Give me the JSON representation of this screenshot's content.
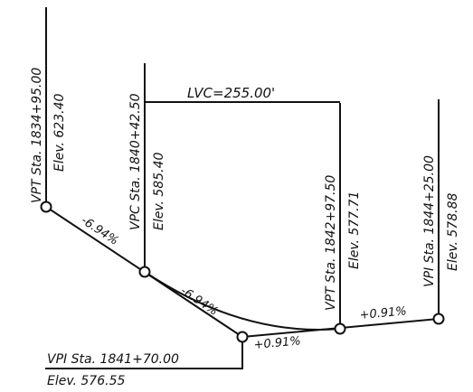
{
  "diagram": {
    "points": {
      "vpt_start": {
        "station": "VPT Sta. 1834+95.00",
        "elevation": "Elev. 623.40"
      },
      "vpc": {
        "station": "VPC Sta. 1840+42.50",
        "elevation": "Elev. 585.40"
      },
      "vpi_low": {
        "station": "VPI Sta. 1841+70.00",
        "elevation": "Elev. 576.55"
      },
      "vpt_end": {
        "station": "VPT Sta. 1842+97.50",
        "elevation": "Elev. 577.71"
      },
      "vpi_end": {
        "station": "VPI Sta. 1844+25.00",
        "elevation": "Elev. 578.88"
      }
    },
    "lvc": "LVC=255.00'",
    "grades": {
      "down_upper": "-6.94%",
      "down_lower": "-6.94%",
      "up_inner": "+0.91%",
      "up_outer": "+0.91%"
    },
    "colors": {
      "ink": "#111111",
      "background": "#ffffff"
    }
  }
}
